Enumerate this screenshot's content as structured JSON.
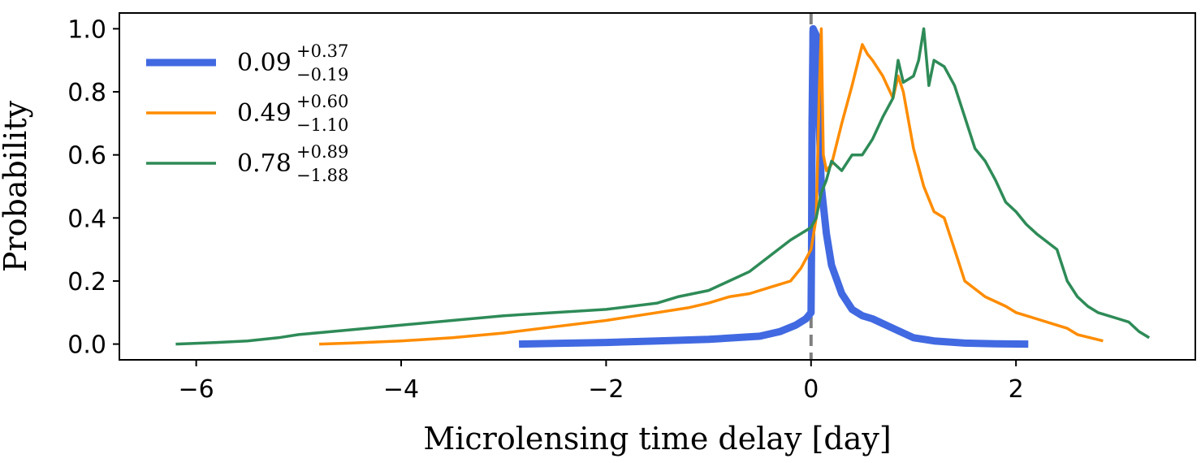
{
  "chart_data": {
    "type": "line",
    "xlabel": "Microlensing time delay  [day]",
    "ylabel": "Probability",
    "xlim": [
      -6.75,
      3.75
    ],
    "ylim": [
      -0.05,
      1.05
    ],
    "x_ticks": [
      -6,
      -4,
      -2,
      0,
      2
    ],
    "x_tick_labels": [
      "−6",
      "−4",
      "−2",
      "0",
      "2"
    ],
    "y_ticks": [
      0.0,
      0.2,
      0.4,
      0.6,
      0.8,
      1.0
    ],
    "y_tick_labels": [
      "0.0",
      "0.2",
      "0.4",
      "0.6",
      "0.8",
      "1.0"
    ],
    "grid": false,
    "legend_placement": "top-left",
    "reference_line": {
      "x": 0,
      "style": "dashed",
      "color": "#808080"
    },
    "series": [
      {
        "name": "0.09",
        "name_sup": "+0.37",
        "name_sub": "−0.19",
        "color": "#4169e1",
        "line_width": 9,
        "x": [
          -2.85,
          -2.5,
          -2.0,
          -1.5,
          -1.0,
          -0.5,
          -0.3,
          -0.15,
          -0.05,
          0.0,
          0.005,
          0.01,
          0.02,
          0.05,
          0.08,
          0.1,
          0.15,
          0.2,
          0.3,
          0.4,
          0.5,
          0.6,
          0.8,
          1.0,
          1.2,
          1.5,
          1.8,
          2.12
        ],
        "y": [
          0.0,
          0.002,
          0.005,
          0.01,
          0.015,
          0.025,
          0.04,
          0.06,
          0.08,
          0.1,
          0.3,
          0.7,
          1.0,
          0.98,
          0.7,
          0.5,
          0.35,
          0.25,
          0.16,
          0.11,
          0.09,
          0.08,
          0.05,
          0.02,
          0.01,
          0.003,
          0.001,
          0.0
        ]
      },
      {
        "name": "0.49",
        "name_sup": "+0.60",
        "name_sub": "−1.10",
        "color": "#ff8c00",
        "line_width": 3.5,
        "x": [
          -4.8,
          -4.5,
          -4.0,
          -3.5,
          -3.0,
          -2.5,
          -2.0,
          -1.5,
          -1.2,
          -1.0,
          -0.8,
          -0.6,
          -0.4,
          -0.2,
          -0.1,
          0.0,
          0.05,
          0.08,
          0.1,
          0.12,
          0.15,
          0.2,
          0.3,
          0.4,
          0.5,
          0.55,
          0.6,
          0.7,
          0.8,
          0.85,
          0.9,
          1.0,
          1.1,
          1.2,
          1.3,
          1.4,
          1.5,
          1.7,
          1.9,
          2.0,
          2.2,
          2.4,
          2.5,
          2.6,
          2.85
        ],
        "y": [
          0.0,
          0.003,
          0.01,
          0.02,
          0.035,
          0.055,
          0.075,
          0.1,
          0.115,
          0.13,
          0.15,
          0.16,
          0.18,
          0.2,
          0.24,
          0.3,
          0.4,
          0.8,
          1.0,
          0.6,
          0.55,
          0.57,
          0.7,
          0.82,
          0.95,
          0.92,
          0.9,
          0.85,
          0.78,
          0.85,
          0.8,
          0.62,
          0.5,
          0.42,
          0.4,
          0.3,
          0.2,
          0.15,
          0.12,
          0.1,
          0.08,
          0.06,
          0.05,
          0.03,
          0.01
        ]
      },
      {
        "name": "0.78",
        "name_sup": "+0.89",
        "name_sub": "−1.88",
        "color": "#2e8b57",
        "line_width": 3.5,
        "x": [
          -6.2,
          -5.8,
          -5.5,
          -5.2,
          -5.0,
          -4.5,
          -4.0,
          -3.5,
          -3.0,
          -2.5,
          -2.0,
          -1.5,
          -1.3,
          -1.0,
          -0.8,
          -0.6,
          -0.4,
          -0.2,
          0.0,
          0.05,
          0.1,
          0.15,
          0.2,
          0.3,
          0.4,
          0.5,
          0.6,
          0.7,
          0.8,
          0.85,
          0.9,
          1.0,
          1.05,
          1.1,
          1.15,
          1.2,
          1.3,
          1.4,
          1.5,
          1.6,
          1.7,
          1.8,
          1.9,
          2.0,
          2.1,
          2.2,
          2.4,
          2.5,
          2.6,
          2.7,
          2.8,
          3.0,
          3.1,
          3.2,
          3.3
        ],
        "y": [
          0.0,
          0.005,
          0.01,
          0.02,
          0.03,
          0.045,
          0.06,
          0.075,
          0.09,
          0.1,
          0.11,
          0.13,
          0.15,
          0.17,
          0.2,
          0.23,
          0.28,
          0.33,
          0.37,
          0.4,
          0.48,
          0.52,
          0.58,
          0.55,
          0.6,
          0.6,
          0.65,
          0.72,
          0.78,
          0.9,
          0.83,
          0.85,
          0.9,
          1.0,
          0.82,
          0.9,
          0.88,
          0.82,
          0.72,
          0.62,
          0.58,
          0.52,
          0.45,
          0.42,
          0.38,
          0.35,
          0.3,
          0.2,
          0.15,
          0.12,
          0.1,
          0.08,
          0.07,
          0.04,
          0.02
        ]
      }
    ]
  }
}
